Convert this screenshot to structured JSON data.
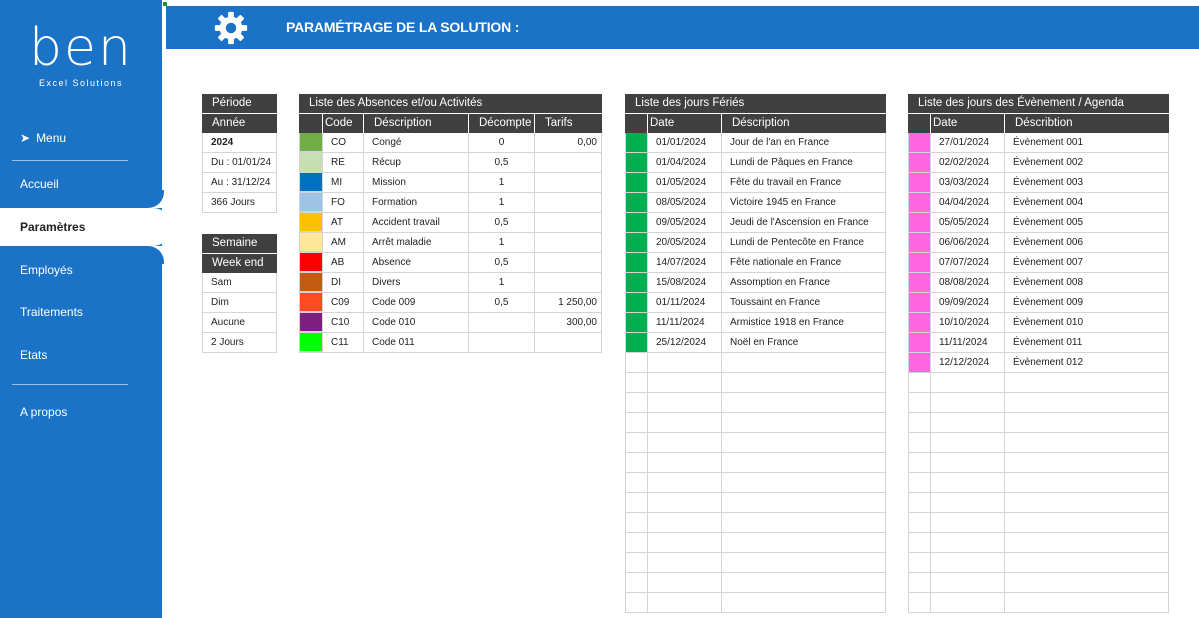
{
  "sidebar": {
    "logo": "ben",
    "logo_sub": "Excel Solutions",
    "menu_label": "Menu",
    "items": [
      "Accueil",
      "Paramètres",
      "Employés",
      "Traitements",
      "Etats",
      "A propos"
    ]
  },
  "header": {
    "title": "PARAMÉTRAGE DE LA SOLUTION :"
  },
  "periode": {
    "title": "Période",
    "header": "Année",
    "rows": [
      "2024",
      "Du : 01/01/24",
      "Au : 31/12/24",
      "366 Jours"
    ]
  },
  "semaine": {
    "title": "Semaine",
    "header": "Week end",
    "rows": [
      "Sam",
      "Dim",
      "Aucune",
      "2 Jours"
    ]
  },
  "absences": {
    "title": "Liste des Absences et/ou Activités",
    "columns": [
      "Code",
      "Déscription",
      "Décompte",
      "Tarifs"
    ],
    "rows": [
      {
        "color": "#70ad47",
        "code": "CO",
        "desc": "Congé",
        "decompte": "0",
        "tarif": "0,00"
      },
      {
        "color": "#c6e0b4",
        "code": "RE",
        "desc": "Récup",
        "decompte": "0,5",
        "tarif": ""
      },
      {
        "color": "#0070c0",
        "code": "MI",
        "desc": "Mission",
        "decompte": "1",
        "tarif": ""
      },
      {
        "color": "#9dc3e6",
        "code": "FO",
        "desc": "Formation",
        "decompte": "1",
        "tarif": ""
      },
      {
        "color": "#ffc000",
        "code": "AT",
        "desc": "Accident travail",
        "decompte": "0,5",
        "tarif": ""
      },
      {
        "color": "#ffe699",
        "code": "AM",
        "desc": "Arrêt maladie",
        "decompte": "1",
        "tarif": ""
      },
      {
        "color": "#ff0000",
        "code": "AB",
        "desc": "Absence",
        "decompte": "0,5",
        "tarif": ""
      },
      {
        "color": "#c55a11",
        "code": "DI",
        "desc": "Divers",
        "decompte": "1",
        "tarif": ""
      },
      {
        "color": "#ff4b1f",
        "code": "C09",
        "desc": "Code 009",
        "decompte": "0,5",
        "tarif": "1 250,00"
      },
      {
        "color": "#7f1f7f",
        "code": "C10",
        "desc": "Code 010",
        "decompte": "",
        "tarif": "300,00"
      },
      {
        "color": "#00ff00",
        "code": "C11",
        "desc": "Code 011",
        "decompte": "",
        "tarif": ""
      }
    ]
  },
  "feries": {
    "title": "Liste des jours Fériés",
    "columns": [
      "Date",
      "Déscription"
    ],
    "color": "#00b050",
    "rows": [
      {
        "date": "01/01/2024",
        "desc": "Jour de l'an en France"
      },
      {
        "date": "01/04/2024",
        "desc": "Lundi de Pâques en France"
      },
      {
        "date": "01/05/2024",
        "desc": "Fête du travail en France"
      },
      {
        "date": "08/05/2024",
        "desc": "Victoire 1945 en France"
      },
      {
        "date": "09/05/2024",
        "desc": "Jeudi de l'Ascension en France"
      },
      {
        "date": "20/05/2024",
        "desc": "Lundi de Pentecôte en France"
      },
      {
        "date": "14/07/2024",
        "desc": "Fête nationale en France"
      },
      {
        "date": "15/08/2024",
        "desc": "Assomption en France"
      },
      {
        "date": "01/11/2024",
        "desc": "Toussaint en France"
      },
      {
        "date": "11/11/2024",
        "desc": "Armistice 1918 en France"
      },
      {
        "date": "25/12/2024",
        "desc": "Noël en France"
      }
    ]
  },
  "evenements": {
    "title": "Liste des jours des Évènement / Agenda",
    "columns": [
      "Date",
      "Déscribtion"
    ],
    "color": "#ff66e0",
    "rows": [
      {
        "date": "27/01/2024",
        "desc": "Évènement 001"
      },
      {
        "date": "02/02/2024",
        "desc": "Évènement 002"
      },
      {
        "date": "03/03/2024",
        "desc": "Évènement 003"
      },
      {
        "date": "04/04/2024",
        "desc": "Évènement 004"
      },
      {
        "date": "05/05/2024",
        "desc": "Évènement 005"
      },
      {
        "date": "06/06/2024",
        "desc": "Évènement 006"
      },
      {
        "date": "07/07/2024",
        "desc": "Évènement 007"
      },
      {
        "date": "08/08/2024",
        "desc": "Évènement 008"
      },
      {
        "date": "09/09/2024",
        "desc": "Évènement 009"
      },
      {
        "date": "10/10/2024",
        "desc": "Évènement 010"
      },
      {
        "date": "11/11/2024",
        "desc": "Évènement 011"
      },
      {
        "date": "12/12/2024",
        "desc": "Évènement 012"
      }
    ]
  }
}
